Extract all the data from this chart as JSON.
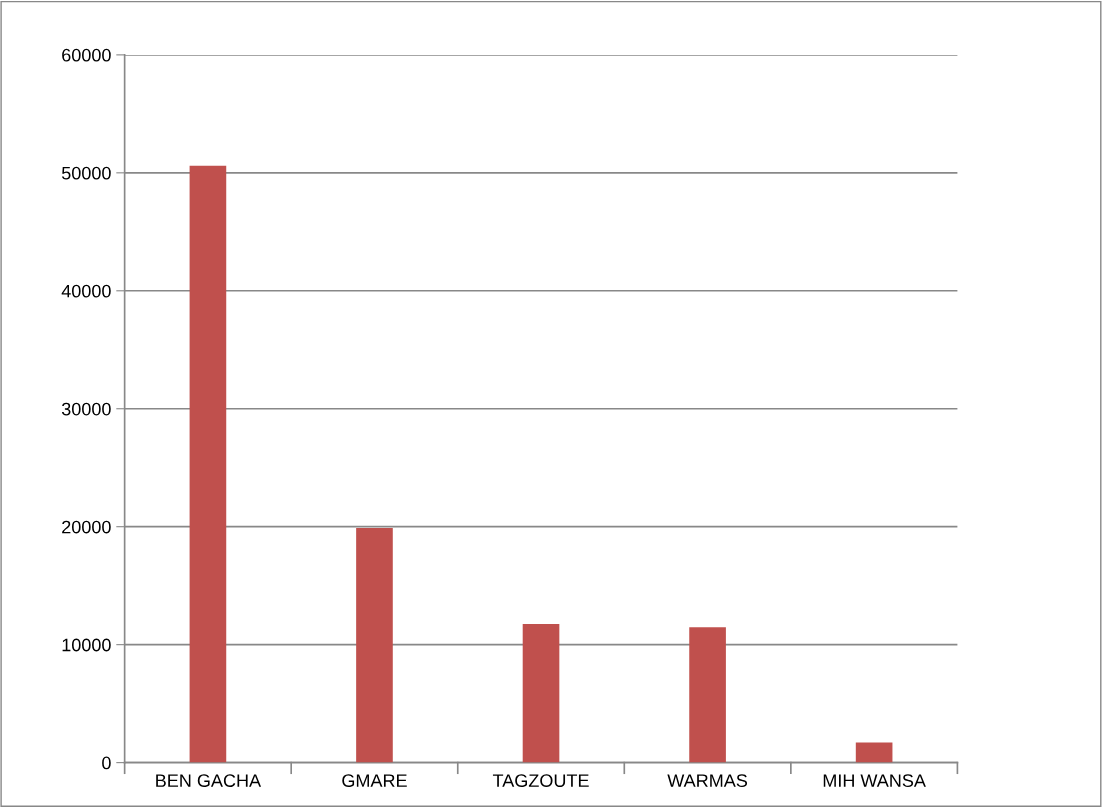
{
  "chart_data": {
    "type": "bar",
    "categories": [
      "BEN GACHA",
      "GMARE",
      "TAGZOUTE",
      "WARMAS",
      "MIH WANSA"
    ],
    "values": [
      50600,
      19900,
      11750,
      11470,
      1710
    ],
    "color": "#c0504d",
    "ylim": [
      0,
      60000
    ],
    "yticks": [
      0,
      10000,
      20000,
      30000,
      40000,
      50000,
      60000
    ],
    "grid": "y",
    "legend": false
  }
}
